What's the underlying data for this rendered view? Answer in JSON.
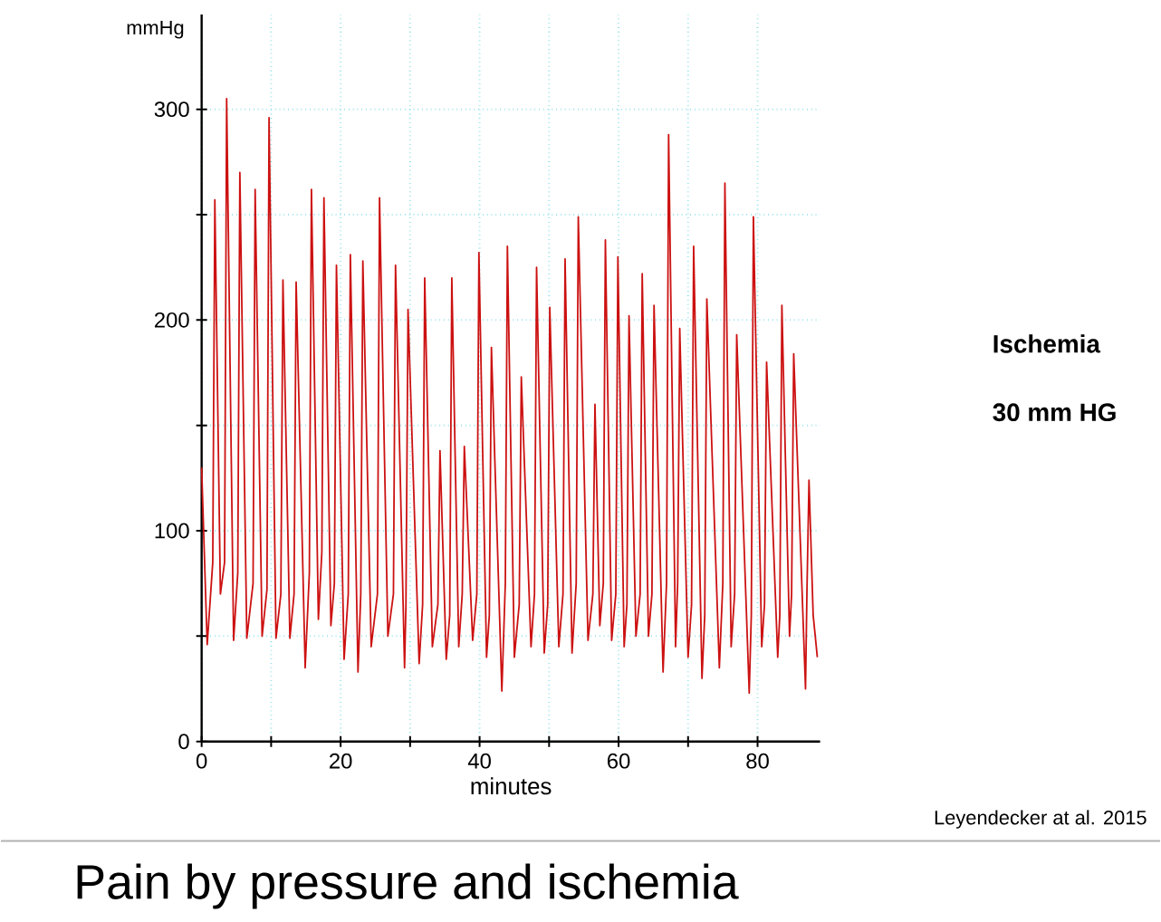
{
  "chart_data": {
    "type": "line",
    "title": "Pain by pressure and ischemia",
    "xlabel": "minutes",
    "ylabel": "mmHg",
    "annotations": [
      "Ischemia",
      "30 mm HG",
      "Leyendecker at al. 2015"
    ],
    "xlim": [
      0,
      89
    ],
    "ylim": [
      0,
      345
    ],
    "xticks": [
      0,
      {
        "value": 10,
        "label": null
      },
      20,
      {
        "value": 30,
        "label": null
      },
      40,
      {
        "value": 50,
        "label": null
      },
      60,
      {
        "value": 70,
        "label": null
      },
      80
    ],
    "yticks": [
      0,
      {
        "value": 50,
        "label": null
      },
      100,
      {
        "value": 150,
        "label": null
      },
      200,
      {
        "value": 250,
        "label": null
      },
      300
    ],
    "grid": true,
    "series": [
      {
        "color": "#cc1111",
        "x": [
          0,
          0.8,
          1.6,
          1.9,
          2.7,
          3.3,
          3.6,
          4.6,
          5.2,
          5.5,
          6.5,
          7.4,
          7.7,
          8.7,
          9.4,
          9.7,
          10.7,
          11.4,
          11.7,
          12.7,
          13.3,
          13.6,
          14.9,
          15.5,
          15.8,
          16.8,
          17.3,
          17.6,
          18.6,
          19.1,
          19.4,
          20.5,
          21.1,
          21.4,
          22.5,
          22.9,
          23.2,
          24.4,
          25.3,
          25.6,
          26.8,
          27.6,
          27.9,
          29.2,
          29.4,
          29.7,
          31.3,
          31.8,
          32.1,
          33.2,
          34.0,
          34.3,
          35.2,
          35.7,
          36.0,
          37.0,
          37.5,
          37.8,
          39.0,
          39.6,
          39.9,
          41.0,
          41.4,
          41.7,
          43.2,
          43.7,
          44.0,
          45.0,
          45.7,
          46.0,
          47.4,
          47.9,
          48.2,
          49.3,
          49.8,
          50.1,
          51.4,
          52.0,
          52.3,
          53.3,
          53.9,
          54.2,
          55.6,
          56.3,
          56.6,
          57.3,
          57.8,
          58.1,
          59.0,
          59.6,
          59.9,
          60.8,
          61.2,
          61.5,
          62.5,
          63.1,
          63.4,
          64.3,
          64.8,
          65.1,
          66.4,
          66.9,
          67.2,
          68.2,
          68.5,
          68.8,
          70.0,
          70.5,
          70.8,
          72.0,
          72.4,
          72.7,
          74.5,
          75.0,
          75.3,
          76.2,
          76.7,
          77.0,
          78.8,
          79.1,
          79.4,
          80.6,
          81.0,
          81.3,
          82.9,
          83.2,
          83.5,
          84.6,
          84.9,
          85.2,
          86.9,
          87.1,
          87.4,
          88.0,
          88.6
        ],
        "values": [
          130,
          46,
          85,
          257,
          70,
          85,
          305,
          48,
          80,
          270,
          49,
          75,
          262,
          50,
          72,
          296,
          49,
          70,
          219,
          49,
          70,
          218,
          35,
          80,
          262,
          58,
          90,
          258,
          55,
          75,
          226,
          39,
          70,
          231,
          33,
          70,
          228,
          45,
          70,
          258,
          50,
          70,
          226,
          35,
          65,
          205,
          37,
          65,
          220,
          45,
          65,
          138,
          39,
          60,
          220,
          45,
          70,
          140,
          48,
          70,
          232,
          40,
          60,
          187,
          24,
          75,
          235,
          40,
          65,
          173,
          45,
          70,
          225,
          42,
          65,
          206,
          45,
          70,
          229,
          42,
          75,
          249,
          48,
          70,
          160,
          55,
          75,
          238,
          48,
          70,
          230,
          45,
          65,
          202,
          50,
          70,
          222,
          50,
          70,
          207,
          33,
          75,
          288,
          45,
          75,
          196,
          40,
          65,
          235,
          30,
          60,
          210,
          35,
          75,
          265,
          45,
          70,
          193,
          23,
          60,
          249,
          45,
          65,
          180,
          40,
          60,
          207,
          50,
          70,
          184,
          25,
          70,
          124,
          60,
          40
        ]
      }
    ]
  }
}
